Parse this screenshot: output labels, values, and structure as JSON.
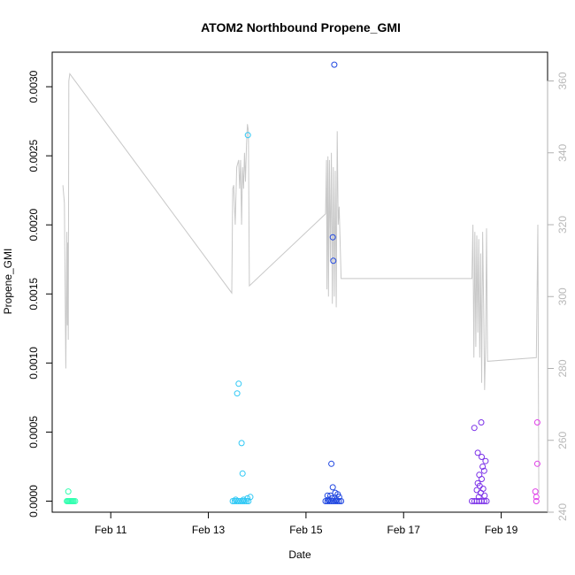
{
  "chart_data": {
    "type": "scatter",
    "title": "ATOM2 Northbound Propene_GMI",
    "xlabel": "Date",
    "ylabel": "Propene_GMI",
    "xlim": [
      9.8,
      19.95
    ],
    "ylim": [
      -8e-05,
      0.00325
    ],
    "y2lim": [
      240,
      368
    ],
    "x_ticks": [
      {
        "value": 11,
        "label": "Feb 11"
      },
      {
        "value": 13,
        "label": "Feb 13"
      },
      {
        "value": 15,
        "label": "Feb 15"
      },
      {
        "value": 17,
        "label": "Feb 17"
      },
      {
        "value": 19,
        "label": "Feb 19"
      }
    ],
    "y_ticks": [
      {
        "value": 0.0,
        "label": "0.0000"
      },
      {
        "value": 0.0005,
        "label": "0.0005"
      },
      {
        "value": 0.001,
        "label": "0.0010"
      },
      {
        "value": 0.0015,
        "label": "0.0015"
      },
      {
        "value": 0.002,
        "label": "0.0020"
      },
      {
        "value": 0.0025,
        "label": "0.0025"
      },
      {
        "value": 0.003,
        "label": "0.0030"
      }
    ],
    "y2_ticks": [
      {
        "value": 240,
        "label": "240"
      },
      {
        "value": 260,
        "label": "260"
      },
      {
        "value": 280,
        "label": "280"
      },
      {
        "value": 300,
        "label": "300"
      },
      {
        "value": 320,
        "label": "320"
      },
      {
        "value": 340,
        "label": "340"
      },
      {
        "value": 360,
        "label": "360"
      }
    ],
    "grid": false,
    "point_series": [
      {
        "color": "#33ffb0",
        "points": [
          [
            10.13,
            7e-05
          ],
          [
            10.1,
            0.0
          ],
          [
            10.12,
            0.0
          ],
          [
            10.14,
            0.0
          ],
          [
            10.16,
            0.0
          ],
          [
            10.18,
            0.0
          ],
          [
            10.2,
            0.0
          ],
          [
            10.22,
            0.0
          ],
          [
            10.24,
            0.0
          ],
          [
            10.27,
            0.0
          ]
        ]
      },
      {
        "color": "#2ec8f5",
        "points": [
          [
            13.81,
            0.00265
          ],
          [
            13.62,
            0.00085
          ],
          [
            13.59,
            0.00078
          ],
          [
            13.68,
            0.00042
          ],
          [
            13.7,
            0.0002
          ],
          [
            13.5,
            0.0
          ],
          [
            13.54,
            0.0
          ],
          [
            13.58,
            0.0
          ],
          [
            13.62,
            0.0
          ],
          [
            13.66,
            0.0
          ],
          [
            13.7,
            0.0
          ],
          [
            13.74,
            0.0
          ],
          [
            13.78,
            0.0
          ],
          [
            13.82,
            0.0
          ],
          [
            13.56,
            1e-05
          ],
          [
            13.72,
            1e-05
          ],
          [
            13.8,
            2e-05
          ],
          [
            13.86,
            3e-05
          ]
        ]
      },
      {
        "color": "#2047e0",
        "points": [
          [
            15.58,
            0.00316
          ],
          [
            15.55,
            0.00191
          ],
          [
            15.56,
            0.00174
          ],
          [
            15.52,
            0.00027
          ],
          [
            15.55,
            0.0001
          ],
          [
            15.44,
            4e-05
          ],
          [
            15.5,
            4e-05
          ],
          [
            15.6,
            6e-05
          ],
          [
            15.65,
            5e-05
          ],
          [
            15.68,
            3e-05
          ],
          [
            15.4,
            0.0
          ],
          [
            15.44,
            0.0
          ],
          [
            15.48,
            0.0
          ],
          [
            15.52,
            0.0
          ],
          [
            15.56,
            0.0
          ],
          [
            15.6,
            0.0
          ],
          [
            15.64,
            0.0
          ],
          [
            15.68,
            0.0
          ],
          [
            15.72,
            0.0
          ],
          [
            15.46,
            1e-05
          ],
          [
            15.54,
            2e-05
          ],
          [
            15.62,
            1e-05
          ]
        ]
      },
      {
        "color": "#7a2fe8",
        "points": [
          [
            18.59,
            0.00057
          ],
          [
            18.45,
            0.00053
          ],
          [
            18.52,
            0.00035
          ],
          [
            18.6,
            0.00032
          ],
          [
            18.68,
            0.00029
          ],
          [
            18.62,
            0.00025
          ],
          [
            18.65,
            0.00022
          ],
          [
            18.55,
            0.00019
          ],
          [
            18.6,
            0.00016
          ],
          [
            18.52,
            0.00013
          ],
          [
            18.56,
            0.00011
          ],
          [
            18.63,
            9e-05
          ],
          [
            18.5,
            8e-05
          ],
          [
            18.58,
            6e-05
          ],
          [
            18.66,
            4e-05
          ],
          [
            18.54,
            3e-05
          ],
          [
            18.4,
            0.0
          ],
          [
            18.45,
            0.0
          ],
          [
            18.5,
            0.0
          ],
          [
            18.55,
            0.0
          ],
          [
            18.6,
            0.0
          ],
          [
            18.65,
            0.0
          ],
          [
            18.7,
            0.0
          ]
        ]
      },
      {
        "color": "#e040e8",
        "points": [
          [
            19.74,
            0.00057
          ],
          [
            19.74,
            0.00027
          ],
          [
            19.7,
            7e-05
          ],
          [
            19.72,
            3e-05
          ],
          [
            19.72,
            0.0
          ]
        ]
      }
    ],
    "line_series": {
      "color": "#c8c8c8",
      "axis": "right",
      "points": [
        [
          10.02,
          331
        ],
        [
          10.05,
          326
        ],
        [
          10.08,
          280
        ],
        [
          10.1,
          318
        ],
        [
          10.11,
          292
        ],
        [
          10.12,
          315
        ],
        [
          10.13,
          288
        ],
        [
          10.14,
          360
        ],
        [
          10.16,
          362
        ],
        [
          13.48,
          301
        ],
        [
          13.5,
          330
        ],
        [
          13.52,
          331
        ],
        [
          13.55,
          320
        ],
        [
          13.58,
          336
        ],
        [
          13.62,
          338
        ],
        [
          13.64,
          330
        ],
        [
          13.66,
          338
        ],
        [
          13.68,
          320
        ],
        [
          13.7,
          336
        ],
        [
          13.72,
          330
        ],
        [
          13.74,
          340
        ],
        [
          13.76,
          332
        ],
        [
          13.78,
          342
        ],
        [
          13.8,
          348
        ],
        [
          13.82,
          346
        ],
        [
          13.84,
          303
        ],
        [
          15.4,
          323
        ],
        [
          15.42,
          338
        ],
        [
          15.43,
          302
        ],
        [
          15.45,
          339
        ],
        [
          15.46,
          300
        ],
        [
          15.48,
          338
        ],
        [
          15.5,
          310
        ],
        [
          15.52,
          340
        ],
        [
          15.54,
          298
        ],
        [
          15.56,
          336
        ],
        [
          15.58,
          300
        ],
        [
          15.6,
          335
        ],
        [
          15.62,
          297
        ],
        [
          15.64,
          346
        ],
        [
          15.66,
          320
        ],
        [
          15.68,
          325
        ],
        [
          15.72,
          305
        ],
        [
          18.35,
          305
        ],
        [
          18.4,
          305
        ],
        [
          18.42,
          320
        ],
        [
          18.44,
          283
        ],
        [
          18.46,
          318
        ],
        [
          18.48,
          286
        ],
        [
          18.5,
          317
        ],
        [
          18.52,
          290
        ],
        [
          18.54,
          316
        ],
        [
          18.56,
          283
        ],
        [
          18.58,
          312
        ],
        [
          18.6,
          276
        ],
        [
          18.62,
          318
        ],
        [
          18.64,
          298
        ],
        [
          18.66,
          274
        ],
        [
          18.68,
          286
        ],
        [
          18.7,
          319
        ],
        [
          18.72,
          282
        ],
        [
          19.72,
          283
        ],
        [
          19.75,
          320
        ],
        [
          19.77,
          245
        ]
      ]
    }
  }
}
